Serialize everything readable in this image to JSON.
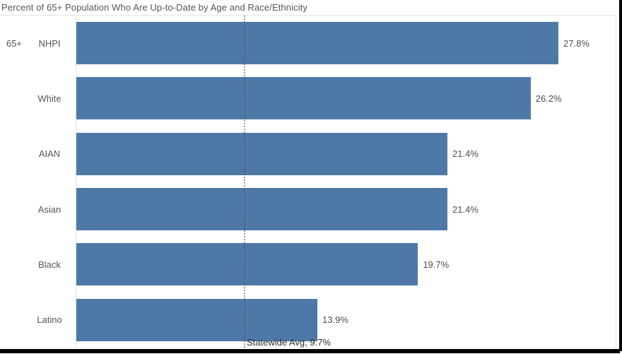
{
  "window": {
    "background_color": "#ffffff",
    "frame_edge_color": "#000000"
  },
  "chart": {
    "title": "Percent of 65+ Population Who Are Up-to-Date by Age and Race/Ethnicity"
  },
  "chart_data": {
    "type": "bar",
    "orientation": "horizontal",
    "title": "Percent of 65+ Population Who Are Up-to-Date by Age and Race/Ethnicity",
    "row_group_label": "65+",
    "categories": [
      "NHPI",
      "White",
      "AIAN",
      "Asian",
      "Black",
      "Latino"
    ],
    "values": [
      27.8,
      26.2,
      21.4,
      21.4,
      19.7,
      13.9
    ],
    "value_labels": [
      "27.8%",
      "26.2%",
      "21.4%",
      "21.4%",
      "19.7%",
      "13.9%"
    ],
    "xlabel": "",
    "ylabel": "",
    "xlim": [
      0,
      31.1
    ],
    "grid": false,
    "legend": "none",
    "bar_color": "#4e79a7",
    "reference_line": {
      "value": 9.7,
      "label": "Statewide Avg, 9.7%",
      "style": "dotted",
      "color": "#4b4b4b"
    }
  }
}
